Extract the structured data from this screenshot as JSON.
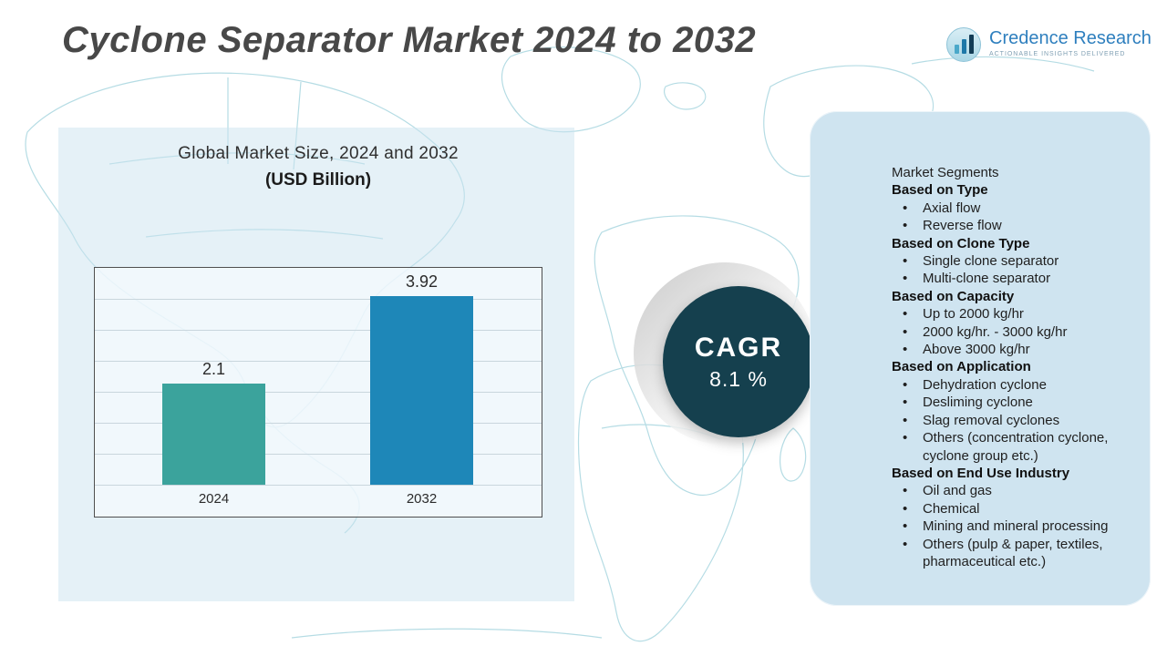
{
  "header": {
    "title": "Cyclone Separator Market 2024 to 2032",
    "logo": {
      "name": "Credence Research",
      "tagline": "Actionable Insights Delivered"
    }
  },
  "chart": {
    "title": "Global Market Size, 2024 and 2032",
    "subtitle": "(USD Billion)"
  },
  "chart_data": {
    "type": "bar",
    "title": "Global Market Size, 2024 and 2032",
    "subtitle": "(USD Billion)",
    "categories": [
      "2024",
      "2032"
    ],
    "values": [
      2.1,
      3.92
    ],
    "value_labels": [
      "2.1",
      "3.92"
    ],
    "ylim": [
      0,
      4.5
    ],
    "grid": true,
    "legend": "none",
    "bar_colors": [
      "#3ba39c",
      "#1e87b8"
    ]
  },
  "cagr": {
    "label": "CAGR",
    "value": "8.1 %"
  },
  "segments": {
    "title": "Market Segments",
    "groups": [
      {
        "heading": "Based on Type",
        "items": [
          "Axial flow",
          "Reverse flow"
        ]
      },
      {
        "heading": "Based on Clone Type",
        "items": [
          "Single clone separator",
          "Multi-clone separator"
        ]
      },
      {
        "heading": "Based on Capacity",
        "items": [
          "Up to 2000 kg/hr",
          "2000 kg/hr. - 3000 kg/hr",
          "Above 3000 kg/hr"
        ]
      },
      {
        "heading": "Based on Application",
        "items": [
          "Dehydration cyclone",
          "Desliming cyclone",
          "Slag removal cyclones",
          "Others (concentration cyclone, cyclone group etc.)"
        ]
      },
      {
        "heading": "Based on End Use Industry",
        "items": [
          "Oil and gas",
          "Chemical",
          "Mining and mineral processing",
          "Others (pulp & paper, textiles, pharmaceutical etc.)"
        ]
      }
    ]
  },
  "colors": {
    "bar_2024": "#3ba39c",
    "bar_2032": "#1e87b8",
    "cagr_circle": "#15404e",
    "panel_background": "#cfe4f0",
    "map_stroke": "#b5dce4",
    "title_text": "#484848",
    "logo_blue": "#2e7fbe"
  }
}
